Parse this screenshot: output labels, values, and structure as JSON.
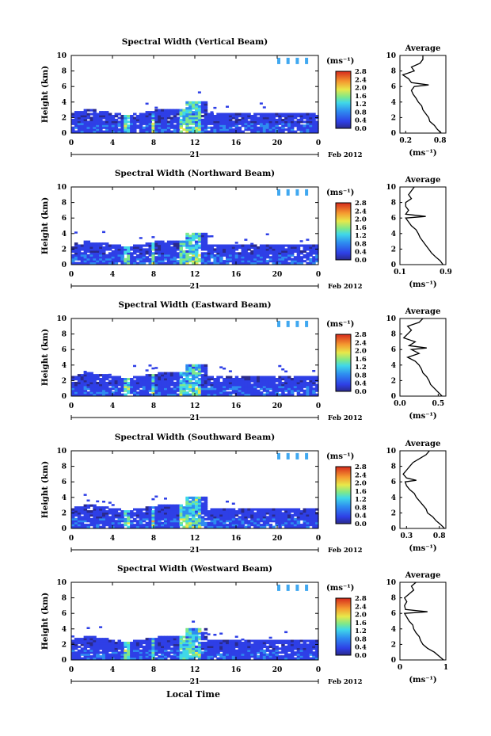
{
  "figure": {
    "date_label": "Feb 2012",
    "day_label": "21",
    "xlabel_bottom": "Local Time"
  },
  "chart_data": [
    {
      "type": "heatmap",
      "title": "Spectral Width (Vertical Beam)",
      "ylabel": "Height (km)",
      "xlim": [
        0,
        24
      ],
      "ylim": [
        0,
        10
      ],
      "xticks": [
        "0",
        "4",
        "8",
        "12",
        "16",
        "20",
        "0"
      ],
      "yticks": [
        "0",
        "2",
        "4",
        "6",
        "8",
        "10"
      ],
      "colorbar": {
        "unit": "(ms⁻¹)",
        "ticks": [
          "0.0",
          "0.4",
          "0.8",
          "1.2",
          "1.6",
          "2.0",
          "2.4",
          "2.8"
        ],
        "range": [
          0,
          2.8
        ]
      },
      "profile": {
        "title": "Average",
        "xlabel": "(ms⁻¹)",
        "xticks": [
          "0.2",
          "0.8"
        ],
        "xlim": [
          0.1,
          0.9
        ],
        "ylim": [
          0,
          10
        ],
        "heights": [
          0,
          0.5,
          1,
          1.5,
          2,
          2.5,
          3,
          3.5,
          4,
          4.5,
          5,
          5.5,
          6,
          6.2,
          6.5,
          7,
          7.5,
          8,
          8.5,
          9,
          9.5,
          10
        ],
        "values": [
          0.82,
          0.75,
          0.7,
          0.62,
          0.6,
          0.55,
          0.5,
          0.48,
          0.42,
          0.38,
          0.33,
          0.3,
          0.35,
          0.6,
          0.3,
          0.25,
          0.15,
          0.35,
          0.3,
          0.45,
          0.5,
          0.5
        ]
      }
    },
    {
      "type": "heatmap",
      "title": "Spectral Width (Northward Beam)",
      "ylabel": "Height (km)",
      "xlim": [
        0,
        24
      ],
      "ylim": [
        0,
        10
      ],
      "xticks": [
        "0",
        "4",
        "8",
        "12",
        "16",
        "20",
        "0"
      ],
      "yticks": [
        "0",
        "2",
        "4",
        "6",
        "8",
        "10"
      ],
      "colorbar": {
        "unit": "(ms⁻¹)",
        "ticks": [
          "0.0",
          "0.4",
          "0.8",
          "1.2",
          "1.6",
          "2.0",
          "2.4",
          "2.8"
        ],
        "range": [
          0,
          2.8
        ]
      },
      "profile": {
        "title": "Average",
        "xlabel": "(ms⁻¹)",
        "xticks": [
          "0.1",
          "0.9"
        ],
        "xlim": [
          0.1,
          0.9
        ],
        "ylim": [
          0,
          10
        ],
        "heights": [
          0,
          0.5,
          1,
          1.5,
          2,
          2.5,
          3,
          3.5,
          4,
          4.5,
          5,
          5.5,
          6,
          6.2,
          6.5,
          7,
          7.5,
          8,
          8.5,
          9,
          9.5,
          10
        ],
        "values": [
          0.85,
          0.8,
          0.72,
          0.65,
          0.6,
          0.55,
          0.5,
          0.45,
          0.42,
          0.38,
          0.3,
          0.25,
          0.2,
          0.55,
          0.2,
          0.25,
          0.2,
          0.2,
          0.3,
          0.25,
          0.3,
          0.35
        ]
      }
    },
    {
      "type": "heatmap",
      "title": "Spectral Width (Eastward Beam)",
      "ylabel": "Height (km)",
      "xlim": [
        0,
        24
      ],
      "ylim": [
        0,
        10
      ],
      "xticks": [
        "0",
        "4",
        "8",
        "12",
        "16",
        "20",
        "0"
      ],
      "yticks": [
        "0",
        "2",
        "4",
        "6",
        "8",
        "10"
      ],
      "colorbar": {
        "unit": "(ms⁻¹)",
        "ticks": [
          "0.0",
          "0.4",
          "0.8",
          "1.2",
          "1.6",
          "2.0",
          "2.4",
          "2.8"
        ],
        "range": [
          0,
          2.8
        ]
      },
      "profile": {
        "title": "Average",
        "xlabel": "(ms⁻¹)",
        "xticks": [
          "0.0",
          "0.5"
        ],
        "xlim": [
          0.0,
          0.6
        ],
        "ylim": [
          0,
          10
        ],
        "heights": [
          0,
          0.5,
          1,
          1.5,
          2,
          2.5,
          3,
          3.5,
          4,
          4.5,
          5,
          5.5,
          6,
          6.2,
          6.5,
          7,
          7.5,
          8,
          8.5,
          9,
          9.5,
          10
        ],
        "values": [
          0.55,
          0.5,
          0.45,
          0.4,
          0.38,
          0.35,
          0.3,
          0.28,
          0.25,
          0.2,
          0.1,
          0.25,
          0.15,
          0.35,
          0.12,
          0.2,
          0.05,
          0.1,
          0.15,
          0.1,
          0.25,
          0.3
        ]
      }
    },
    {
      "type": "heatmap",
      "title": "Spectral Width (Southward Beam)",
      "ylabel": "Height (km)",
      "xlim": [
        0,
        24
      ],
      "ylim": [
        0,
        10
      ],
      "xticks": [
        "0",
        "4",
        "8",
        "12",
        "16",
        "20",
        "0"
      ],
      "yticks": [
        "0",
        "2",
        "4",
        "6",
        "8",
        "10"
      ],
      "colorbar": {
        "unit": "(ms⁻¹)",
        "ticks": [
          "0.0",
          "0.4",
          "0.8",
          "1.2",
          "1.6",
          "2.0",
          "2.4",
          "2.8"
        ],
        "range": [
          0,
          2.8
        ]
      },
      "profile": {
        "title": "Average",
        "xlabel": "(ms⁻¹)",
        "xticks": [
          "0.3",
          "0.8"
        ],
        "xlim": [
          0.2,
          0.9
        ],
        "ylim": [
          0,
          10
        ],
        "heights": [
          0,
          0.5,
          1,
          1.5,
          2,
          2.5,
          3,
          3.5,
          4,
          4.5,
          5,
          5.5,
          6,
          6.2,
          6.5,
          7,
          7.5,
          8,
          8.5,
          9,
          9.5,
          10
        ],
        "values": [
          0.88,
          0.82,
          0.75,
          0.7,
          0.62,
          0.6,
          0.55,
          0.5,
          0.45,
          0.42,
          0.35,
          0.3,
          0.28,
          0.45,
          0.3,
          0.25,
          0.3,
          0.35,
          0.4,
          0.5,
          0.6,
          0.65
        ]
      }
    },
    {
      "type": "heatmap",
      "title": "Spectral Width (Westward Beam)",
      "ylabel": "Height (km)",
      "xlim": [
        0,
        24
      ],
      "ylim": [
        0,
        10
      ],
      "xticks": [
        "0",
        "4",
        "8",
        "12",
        "16",
        "20",
        "0"
      ],
      "yticks": [
        "0",
        "2",
        "4",
        "6",
        "8",
        "10"
      ],
      "colorbar": {
        "unit": "(ms⁻¹)",
        "ticks": [
          "0.0",
          "0.4",
          "0.8",
          "1.2",
          "1.6",
          "2.0",
          "2.4",
          "2.8"
        ],
        "range": [
          0,
          2.8
        ]
      },
      "profile": {
        "title": "Average",
        "xlabel": "(ms⁻¹)",
        "xticks": [
          "0",
          "1"
        ],
        "xlim": [
          0,
          1
        ],
        "ylim": [
          0,
          10
        ],
        "heights": [
          0,
          0.5,
          1,
          1.5,
          2,
          2.5,
          3,
          3.5,
          4,
          4.5,
          5,
          5.5,
          6,
          6.2,
          6.5,
          7,
          7.5,
          8,
          8.5,
          9,
          9.5,
          10
        ],
        "values": [
          0.95,
          0.85,
          0.75,
          0.6,
          0.5,
          0.45,
          0.42,
          0.35,
          0.3,
          0.28,
          0.2,
          0.15,
          0.1,
          0.6,
          0.12,
          0.1,
          0.15,
          0.1,
          0.2,
          0.3,
          0.25,
          0.35
        ]
      }
    }
  ]
}
